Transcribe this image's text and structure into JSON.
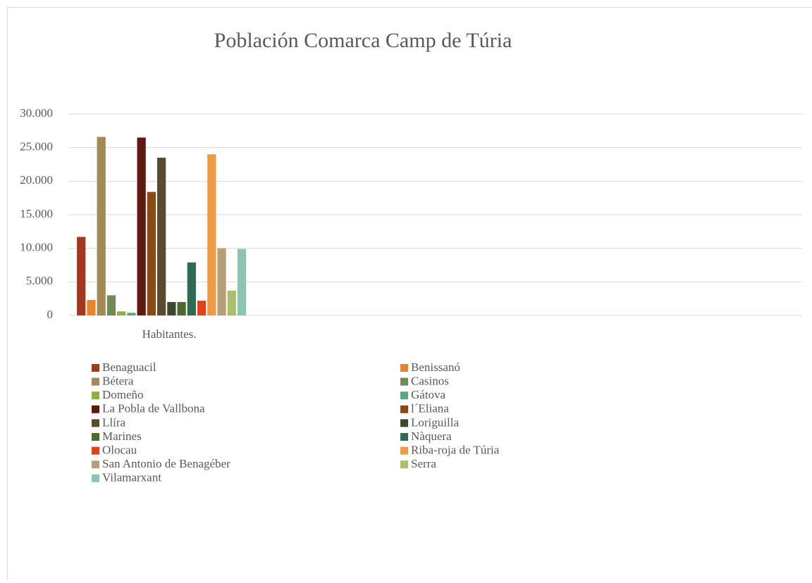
{
  "chart_data": {
    "type": "bar",
    "title": "Población Comarca Camp de Túria",
    "categories": [
      "Habitantes.",
      null,
      null,
      null
    ],
    "ylim": [
      0,
      30000
    ],
    "yticks": [
      0,
      {
        "value": 5000,
        "label": "5.000"
      },
      {
        "value": 10000,
        "label": "10.000"
      },
      {
        "value": 15000,
        "label": "15.000"
      },
      {
        "value": 20000,
        "label": "20.000"
      },
      {
        "value": 25000,
        "label": "25.000"
      },
      {
        "value": 30000,
        "label": "30.000"
      }
    ],
    "grid": true,
    "legend": "bottom",
    "series": [
      {
        "name": "Benaguacil",
        "color": "#a5381c",
        "values": [
          11700,
          null,
          null,
          null
        ]
      },
      {
        "name": "Benissanó",
        "color": "#e6852a",
        "values": [
          2300,
          null,
          null,
          null
        ]
      },
      {
        "name": "Bétera",
        "color": "#a48955",
        "values": [
          26600,
          null,
          null,
          null
        ]
      },
      {
        "name": "Casinos",
        "color": "#6f8a55",
        "values": [
          3000,
          null,
          null,
          null
        ]
      },
      {
        "name": "Domeño",
        "color": "#8faf40",
        "values": [
          600,
          null,
          null,
          null
        ]
      },
      {
        "name": "Gátova",
        "color": "#5da58a",
        "values": [
          400,
          null,
          null,
          null
        ]
      },
      {
        "name": "La Pobla de Vallbona",
        "color": "#5c1a10",
        "values": [
          26500,
          null,
          null,
          null
        ]
      },
      {
        "name": "l´Eliana",
        "color": "#8a4a13",
        "values": [
          18400,
          null,
          null,
          null
        ]
      },
      {
        "name": "Llíra",
        "color": "#5a4a2e",
        "values": [
          23500,
          null,
          null,
          null
        ]
      },
      {
        "name": "Loriguilla",
        "color": "#3b4a2c",
        "values": [
          2000,
          null,
          null,
          null
        ]
      },
      {
        "name": "Marines",
        "color": "#4e6a2a",
        "values": [
          2000,
          null,
          null,
          null
        ]
      },
      {
        "name": "Nàquera",
        "color": "#2f6a52",
        "values": [
          7900,
          null,
          null,
          null
        ]
      },
      {
        "name": "Olocau",
        "color": "#e2411a",
        "values": [
          2200,
          null,
          null,
          null
        ]
      },
      {
        "name": "Riba-roja de Túria",
        "color": "#ef9a45",
        "values": [
          24000,
          null,
          null,
          null
        ]
      },
      {
        "name": "San Antonio de Benagéber",
        "color": "#b89e76",
        "values": [
          10000,
          null,
          null,
          null
        ]
      },
      {
        "name": "Serra",
        "color": "#a9c06a",
        "values": [
          3700,
          null,
          null,
          null
        ]
      },
      {
        "name": "Vilamarxant",
        "color": "#8cc4b0",
        "values": [
          9900,
          null,
          null,
          null
        ]
      }
    ]
  }
}
